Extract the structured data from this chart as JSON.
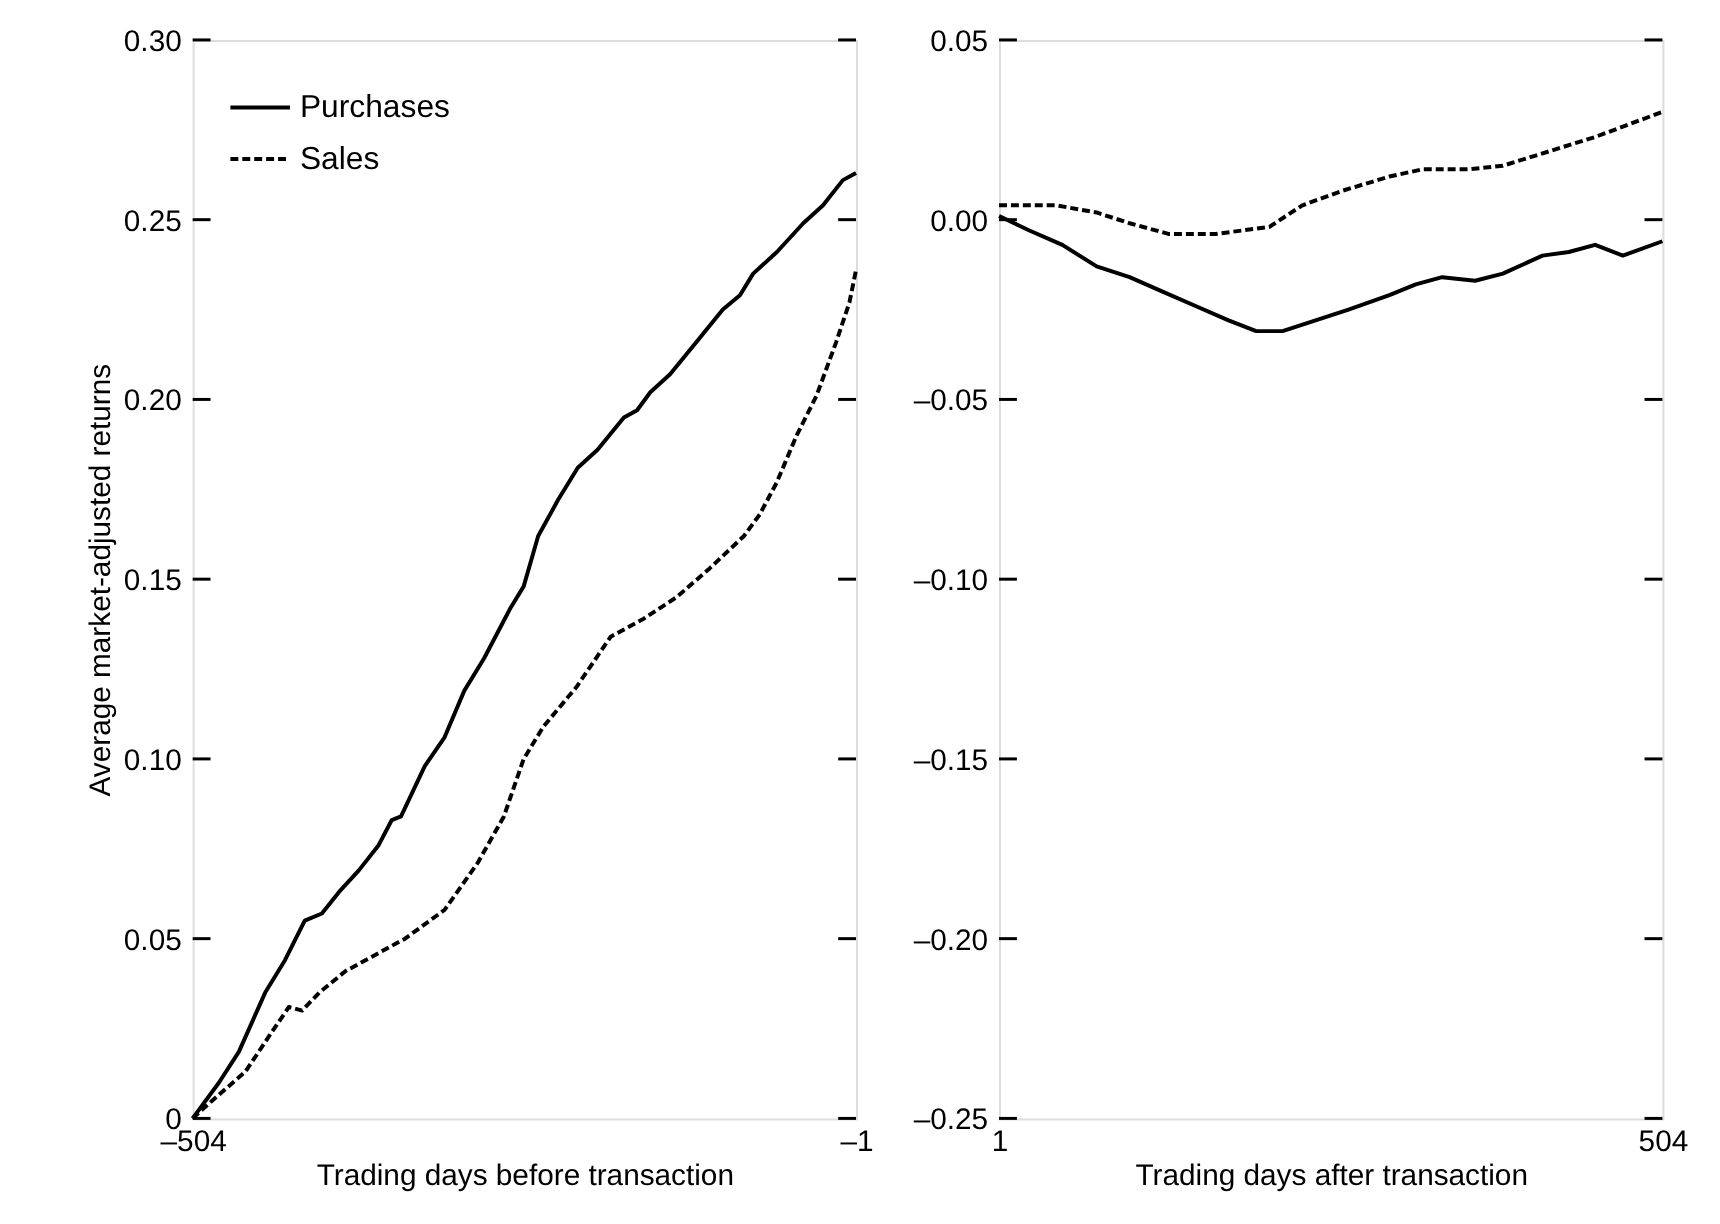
{
  "chart_data": [
    {
      "type": "line",
      "xlabel": "Trading days before transaction",
      "ylabel": "Average market-adjusted returns",
      "xlim": [
        -504,
        -1
      ],
      "xticks": [
        {
          "value": -504,
          "label": "–504"
        },
        {
          "value": -1,
          "label": "–1"
        }
      ],
      "ylim": [
        0,
        0.3
      ],
      "yticks": [
        {
          "value": 0,
          "label": "0"
        },
        {
          "value": 0.05,
          "label": "0.05"
        },
        {
          "value": 0.1,
          "label": "0.10"
        },
        {
          "value": 0.15,
          "label": "0.15"
        },
        {
          "value": 0.2,
          "label": "0.20"
        },
        {
          "value": 0.25,
          "label": "0.25"
        },
        {
          "value": 0.3,
          "label": "0.30"
        }
      ],
      "grid": false,
      "legend": "top left",
      "marker": "none",
      "series": [
        {
          "name": "Purchases",
          "color": "#000000",
          "line_style": "solid",
          "x": [
            -504,
            -484,
            -469,
            -449,
            -434,
            -419,
            -406,
            -393,
            -378,
            -363,
            -353,
            -346,
            -328,
            -313,
            -298,
            -283,
            -263,
            -253,
            -242,
            -227,
            -212,
            -197,
            -177,
            -167,
            -157,
            -142,
            -122,
            -102,
            -89,
            -79,
            -61,
            -41,
            -26,
            -11,
            -1
          ],
          "values": [
            0,
            0.01,
            0.0185,
            0.035,
            0.044,
            0.055,
            0.057,
            0.063,
            0.069,
            0.076,
            0.083,
            0.084,
            0.098,
            0.106,
            0.119,
            0.128,
            0.142,
            0.148,
            0.162,
            0.172,
            0.181,
            0.186,
            0.195,
            0.197,
            0.202,
            0.207,
            0.216,
            0.225,
            0.229,
            0.235,
            0.241,
            0.249,
            0.254,
            0.261,
            0.263
          ]
        },
        {
          "name": "Sales",
          "color": "#000000",
          "line_style": "dashed",
          "x": [
            -504,
            -489,
            -464,
            -444,
            -431,
            -421,
            -408,
            -388,
            -368,
            -343,
            -313,
            -288,
            -268,
            -253,
            -238,
            -213,
            -187,
            -162,
            -137,
            -112,
            -86,
            -74,
            -61,
            -46,
            -31,
            -16,
            -6,
            -1
          ],
          "values": [
            0,
            0.005,
            0.013,
            0.024,
            0.031,
            0.03,
            0.035,
            0.041,
            0.045,
            0.05,
            0.058,
            0.071,
            0.084,
            0.1,
            0.109,
            0.12,
            0.134,
            0.139,
            0.145,
            0.153,
            0.162,
            0.168,
            0.177,
            0.19,
            0.201,
            0.216,
            0.227,
            0.236
          ]
        }
      ]
    },
    {
      "type": "line",
      "xlabel": "Trading days after transaction",
      "xlim": [
        1,
        504
      ],
      "xticks": [
        1,
        504
      ],
      "ylim": [
        -0.25,
        0.05
      ],
      "yticks": [
        {
          "value": -0.25,
          "label": "–0.25"
        },
        {
          "value": -0.2,
          "label": "–0.20"
        },
        {
          "value": -0.15,
          "label": "–0.15"
        },
        {
          "value": -0.1,
          "label": "–0.10"
        },
        {
          "value": -0.05,
          "label": "–0.05"
        },
        {
          "value": 0,
          "label": "0.00"
        },
        {
          "value": 0.05,
          "label": "0.05"
        }
      ],
      "grid": false,
      "marker": "none",
      "series": [
        {
          "color": "#000000",
          "line_style": "solid",
          "x": [
            1,
            24,
            49,
            75,
            100,
            125,
            150,
            175,
            196,
            216,
            241,
            266,
            297,
            317,
            337,
            362,
            383,
            413,
            433,
            453,
            474,
            504
          ],
          "values": [
            0.001,
            -0.003,
            -0.007,
            -0.013,
            -0.016,
            -0.02,
            -0.024,
            -0.028,
            -0.031,
            -0.031,
            -0.028,
            -0.025,
            -0.021,
            -0.018,
            -0.016,
            -0.017,
            -0.015,
            -0.01,
            -0.009,
            -0.007,
            -0.01,
            -0.006
          ]
        },
        {
          "color": "#000000",
          "line_style": "dashed",
          "x": [
            1,
            44,
            75,
            100,
            130,
            165,
            206,
            231,
            261,
            297,
            322,
            357,
            383,
            418,
            453,
            504
          ],
          "values": [
            0.004,
            0.004,
            0.002,
            -0.001,
            -0.004,
            -0.004,
            -0.002,
            0.004,
            0.008,
            0.012,
            0.014,
            0.014,
            0.015,
            0.019,
            0.023,
            0.03
          ]
        }
      ]
    }
  ]
}
